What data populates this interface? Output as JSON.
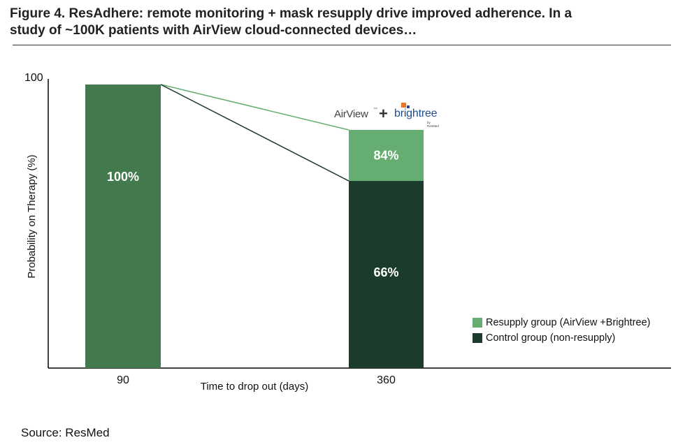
{
  "figure": {
    "title_line1": "Figure 4. ResAdhere: remote monitoring + mask resupply drive improved adherence. In a",
    "title_line2": "study of ~100K patients with AirView cloud-connected devices…",
    "source": "Source: ResMed"
  },
  "logo": {
    "airview": "AirView",
    "tm": "™",
    "plus": "+",
    "brightree": "brightree",
    "byline": "by ResMed"
  },
  "colors": {
    "bar_90": "#437a4d",
    "resupply": "#66ad72",
    "control": "#1b3c2c",
    "axis": "#000000"
  },
  "chart_data": {
    "type": "bar",
    "title": "ResAdhere: remote monitoring + mask resupply drive improved adherence",
    "xlabel": "Time to drop out (days)",
    "ylabel": "Probability on Therapy (%)",
    "ylim": [
      0,
      100
    ],
    "y_ticks": [
      "100"
    ],
    "categories": [
      "90",
      "360"
    ],
    "bars": [
      {
        "category": "90",
        "value": 100,
        "label": "100%",
        "series": "all"
      },
      {
        "category": "360",
        "value": 66,
        "label": "66%",
        "series": "Control group (non-resupply)"
      },
      {
        "category": "360",
        "value": 84,
        "label": "84%",
        "series": "Resupply group (AirView +Brightree)"
      }
    ],
    "series": [
      {
        "name": "Resupply group (AirView +Brightree)",
        "values": [
          100,
          84
        ]
      },
      {
        "name": "Control group (non-resupply)",
        "values": [
          100,
          66
        ]
      }
    ],
    "legend": [
      "Resupply group (AirView +Brightree)",
      "Control group (non-resupply)"
    ],
    "legend_position": "bottom-right"
  }
}
